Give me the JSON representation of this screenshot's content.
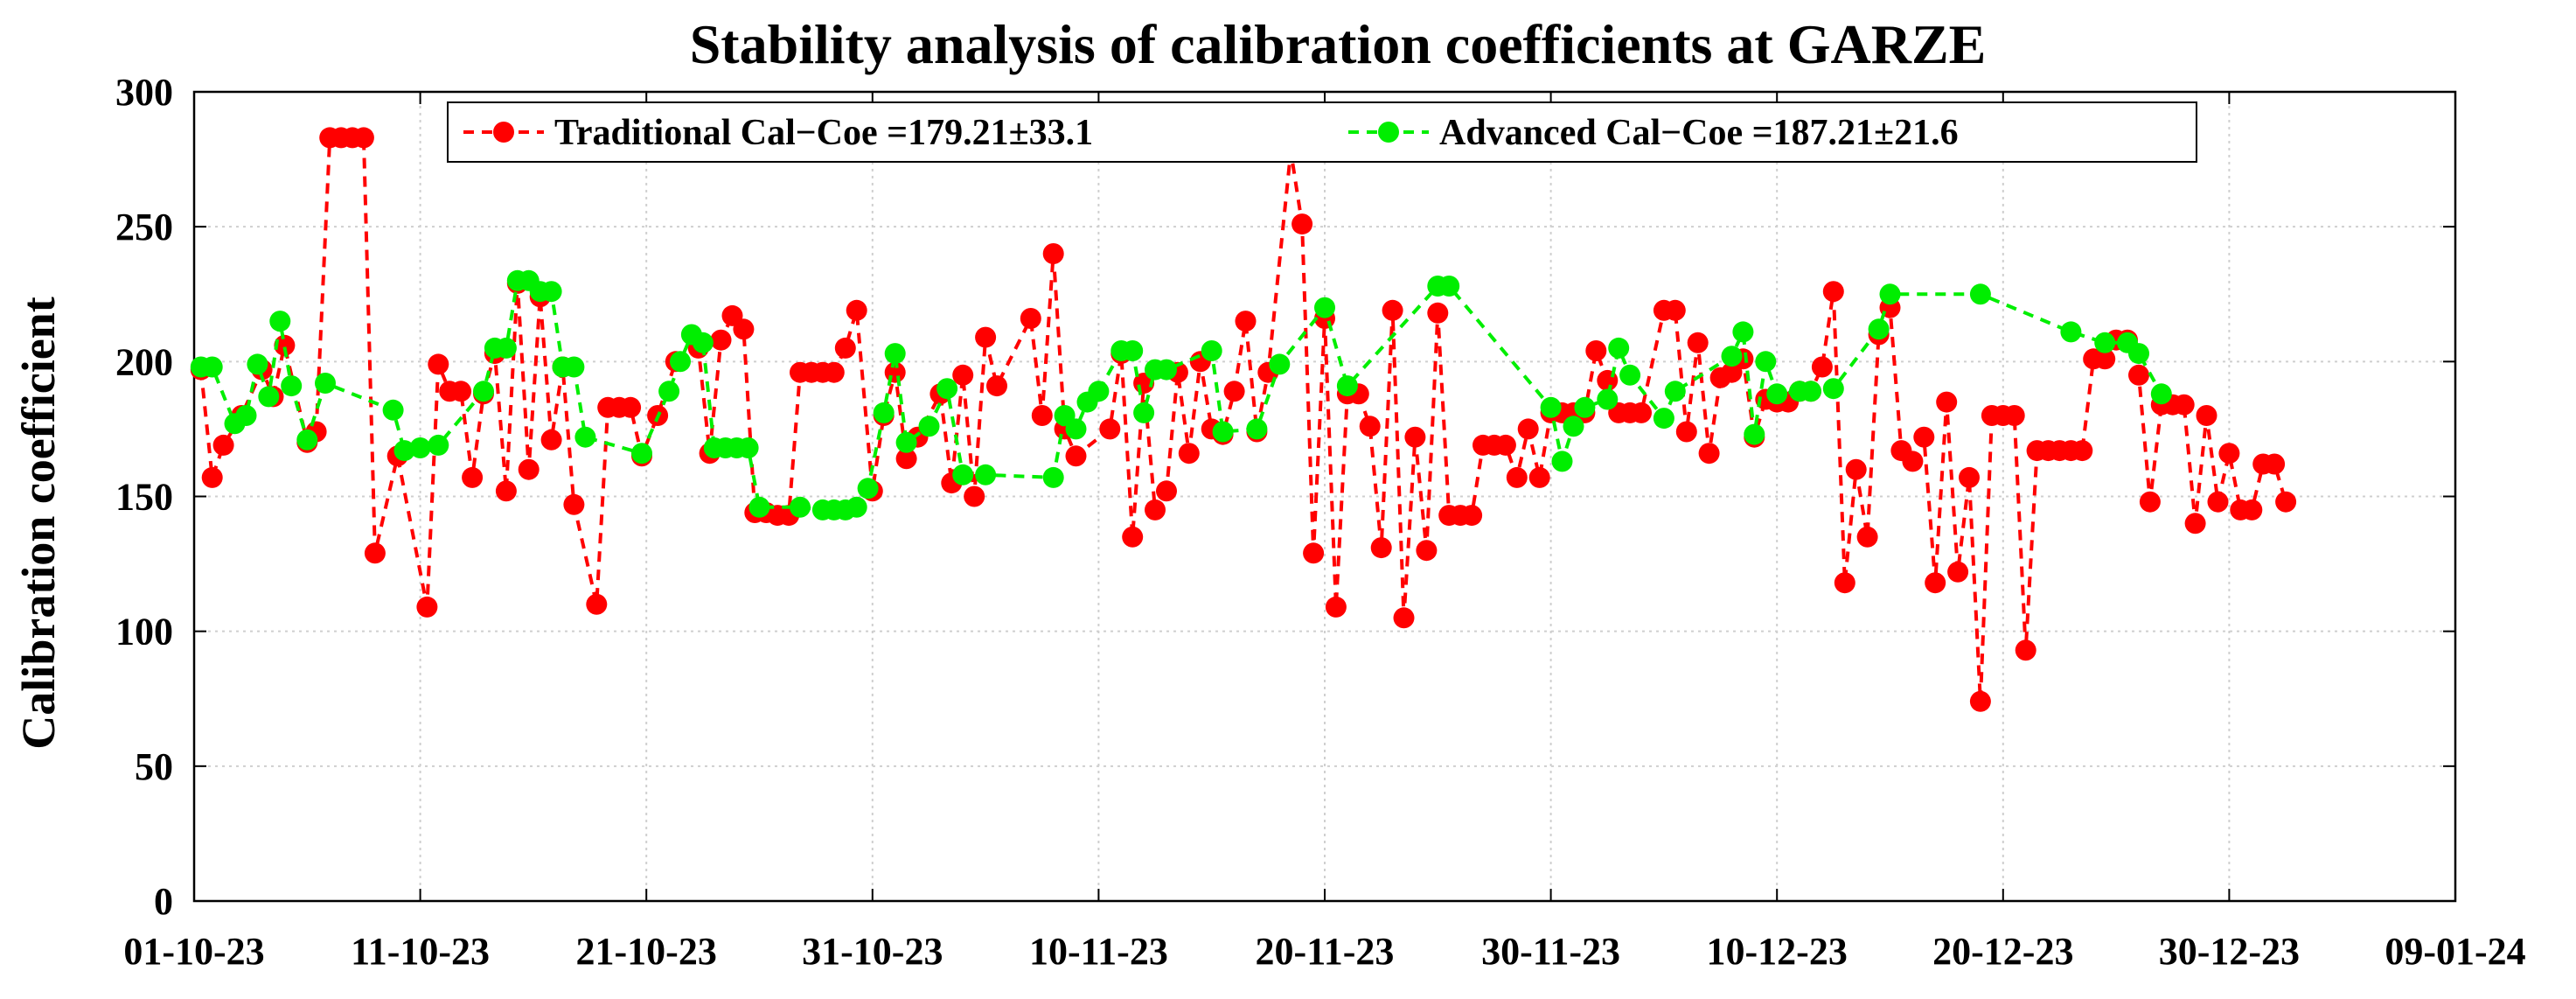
{
  "chart_data": {
    "type": "line",
    "title": "Stability analysis of calibration coefficients at GARZE",
    "xlabel": "",
    "ylabel": "Calibration coefficient",
    "x_tick_labels": [
      "01-10-23",
      "11-10-23",
      "21-10-23",
      "31-10-23",
      "10-11-23",
      "20-11-23",
      "30-11-23",
      "10-12-23",
      "20-12-23",
      "30-12-23",
      "09-01-24"
    ],
    "xlim_days": [
      0,
      100
    ],
    "ylim": [
      0,
      300
    ],
    "y_ticks": [
      0,
      50,
      100,
      150,
      200,
      250,
      300
    ],
    "grid": true,
    "legend_location": "top",
    "series": [
      {
        "name": "Traditional Cal-Coe",
        "label": "Traditional Cal−Coe =179.21±33.1",
        "color": "#ff0000",
        "style": "dashed-with-circles",
        "points": [
          [
            0.3,
            197
          ],
          [
            0.8,
            157
          ],
          [
            1.3,
            169
          ],
          [
            2.1,
            180
          ],
          [
            3.0,
            197
          ],
          [
            3.5,
            187
          ],
          [
            4.0,
            206
          ],
          [
            5.0,
            170
          ],
          [
            5.4,
            174
          ],
          [
            6.0,
            283
          ],
          [
            6.5,
            283
          ],
          [
            7.0,
            283
          ],
          [
            7.5,
            283
          ],
          [
            8.0,
            129
          ],
          [
            9.0,
            165
          ],
          [
            10.3,
            109
          ],
          [
            10.8,
            199
          ],
          [
            11.3,
            189
          ],
          [
            11.8,
            189
          ],
          [
            12.3,
            157
          ],
          [
            12.8,
            188
          ],
          [
            13.3,
            203
          ],
          [
            13.8,
            152
          ],
          [
            14.3,
            229
          ],
          [
            14.8,
            160
          ],
          [
            15.3,
            224
          ],
          [
            15.8,
            171
          ],
          [
            16.3,
            198
          ],
          [
            16.8,
            147
          ],
          [
            17.8,
            110
          ],
          [
            18.3,
            183
          ],
          [
            18.8,
            183
          ],
          [
            19.3,
            183
          ],
          [
            19.8,
            165
          ],
          [
            20.5,
            180
          ],
          [
            21.3,
            200
          ],
          [
            22.3,
            205
          ],
          [
            22.8,
            166
          ],
          [
            23.3,
            208
          ],
          [
            23.8,
            217
          ],
          [
            24.3,
            212
          ],
          [
            24.8,
            144
          ],
          [
            25.3,
            144
          ],
          [
            25.8,
            143
          ],
          [
            26.3,
            143
          ],
          [
            26.8,
            196
          ],
          [
            27.3,
            196
          ],
          [
            27.8,
            196
          ],
          [
            28.3,
            196
          ],
          [
            28.8,
            205
          ],
          [
            29.3,
            219
          ],
          [
            30.0,
            152
          ],
          [
            30.5,
            180
          ],
          [
            31.0,
            196
          ],
          [
            31.5,
            164
          ],
          [
            32.0,
            172
          ],
          [
            33.0,
            188
          ],
          [
            33.5,
            155
          ],
          [
            34.0,
            195
          ],
          [
            34.5,
            150
          ],
          [
            35.0,
            209
          ],
          [
            35.5,
            191
          ],
          [
            37.0,
            216
          ],
          [
            37.5,
            180
          ],
          [
            38.0,
            240
          ],
          [
            38.5,
            175
          ],
          [
            39.0,
            165
          ],
          [
            40.5,
            175
          ],
          [
            41.0,
            203
          ],
          [
            41.5,
            135
          ],
          [
            42.0,
            192
          ],
          [
            42.5,
            145
          ],
          [
            43.0,
            152
          ],
          [
            43.5,
            196
          ],
          [
            44.0,
            166
          ],
          [
            44.5,
            200
          ],
          [
            45.0,
            175
          ],
          [
            45.5,
            173
          ],
          [
            46.0,
            189
          ],
          [
            46.5,
            215
          ],
          [
            47.0,
            174
          ],
          [
            47.5,
            196
          ],
          [
            48.5,
            278
          ],
          [
            49.0,
            251
          ],
          [
            49.5,
            129
          ],
          [
            50.0,
            216
          ],
          [
            50.5,
            109
          ],
          [
            51.0,
            188
          ],
          [
            51.5,
            188
          ],
          [
            52.0,
            176
          ],
          [
            52.5,
            131
          ],
          [
            53.0,
            219
          ],
          [
            53.5,
            105
          ],
          [
            54.0,
            172
          ],
          [
            54.5,
            130
          ],
          [
            55.0,
            218
          ],
          [
            55.5,
            143
          ],
          [
            56.0,
            143
          ],
          [
            56.5,
            143
          ],
          [
            57.0,
            169
          ],
          [
            57.5,
            169
          ],
          [
            58.0,
            169
          ],
          [
            58.5,
            157
          ],
          [
            59.0,
            175
          ],
          [
            59.5,
            157
          ],
          [
            60.0,
            181
          ],
          [
            60.5,
            181
          ],
          [
            61.0,
            181
          ],
          [
            61.5,
            181
          ],
          [
            62.0,
            204
          ],
          [
            62.5,
            193
          ],
          [
            63.0,
            181
          ],
          [
            63.5,
            181
          ],
          [
            64.0,
            181
          ],
          [
            65.0,
            219
          ],
          [
            65.5,
            219
          ],
          [
            66.0,
            174
          ],
          [
            66.5,
            207
          ],
          [
            67.0,
            166
          ],
          [
            67.5,
            194
          ],
          [
            68.0,
            196
          ],
          [
            68.5,
            201
          ],
          [
            69.0,
            172
          ],
          [
            69.5,
            186
          ],
          [
            70.0,
            185
          ],
          [
            70.5,
            185
          ],
          [
            71.0,
            189
          ],
          [
            71.5,
            189
          ],
          [
            72.0,
            198
          ],
          [
            72.5,
            226
          ],
          [
            73.0,
            118
          ],
          [
            73.5,
            160
          ],
          [
            74.0,
            135
          ],
          [
            74.5,
            210
          ],
          [
            75.0,
            220
          ],
          [
            75.5,
            167
          ],
          [
            76.0,
            163
          ],
          [
            76.5,
            172
          ],
          [
            77.0,
            118
          ],
          [
            77.5,
            185
          ],
          [
            78.0,
            122
          ],
          [
            78.5,
            157
          ],
          [
            79.0,
            74
          ],
          [
            79.5,
            180
          ],
          [
            80.0,
            180
          ],
          [
            80.5,
            180
          ],
          [
            81.0,
            93
          ],
          [
            81.5,
            167
          ],
          [
            82.0,
            167
          ],
          [
            82.5,
            167
          ],
          [
            83.0,
            167
          ],
          [
            83.5,
            167
          ],
          [
            84.0,
            201
          ],
          [
            84.5,
            201
          ],
          [
            85.0,
            208
          ],
          [
            85.5,
            208
          ],
          [
            86.0,
            195
          ],
          [
            86.5,
            148
          ],
          [
            87.0,
            184
          ],
          [
            87.5,
            184
          ],
          [
            88.0,
            184
          ],
          [
            88.5,
            140
          ],
          [
            89.0,
            180
          ],
          [
            89.5,
            148
          ],
          [
            90.0,
            166
          ],
          [
            90.5,
            145
          ],
          [
            91.0,
            145
          ],
          [
            91.5,
            162
          ],
          [
            92.0,
            162
          ],
          [
            92.5,
            148
          ]
        ]
      },
      {
        "name": "Advanced Cal-Coe",
        "label": "Advanced Cal−Coe =187.21±21.6",
        "color": "#00ee00",
        "style": "dashed-with-circles",
        "points": [
          [
            0.3,
            198
          ],
          [
            0.8,
            198
          ],
          [
            1.8,
            177
          ],
          [
            2.3,
            180
          ],
          [
            2.8,
            199
          ],
          [
            3.3,
            187
          ],
          [
            3.8,
            215
          ],
          [
            4.3,
            191
          ],
          [
            5.0,
            171
          ],
          [
            5.8,
            192
          ],
          [
            8.8,
            182
          ],
          [
            9.3,
            167
          ],
          [
            10.0,
            168
          ],
          [
            10.8,
            169
          ],
          [
            12.8,
            189
          ],
          [
            13.3,
            205
          ],
          [
            13.8,
            205
          ],
          [
            14.3,
            230
          ],
          [
            14.8,
            230
          ],
          [
            15.3,
            226
          ],
          [
            15.8,
            226
          ],
          [
            16.3,
            198
          ],
          [
            16.8,
            198
          ],
          [
            17.3,
            172
          ],
          [
            19.8,
            166
          ],
          [
            21.0,
            189
          ],
          [
            21.5,
            200
          ],
          [
            22.0,
            210
          ],
          [
            22.5,
            207
          ],
          [
            23.0,
            168
          ],
          [
            23.5,
            168
          ],
          [
            24.0,
            168
          ],
          [
            24.5,
            168
          ],
          [
            25.0,
            146
          ],
          [
            26.8,
            146
          ],
          [
            27.8,
            145
          ],
          [
            28.3,
            145
          ],
          [
            28.8,
            145
          ],
          [
            29.3,
            146
          ],
          [
            29.8,
            153
          ],
          [
            30.5,
            181
          ],
          [
            31.0,
            203
          ],
          [
            31.5,
            170
          ],
          [
            32.5,
            176
          ],
          [
            33.3,
            190
          ],
          [
            34.0,
            158
          ],
          [
            35.0,
            158
          ],
          [
            38.0,
            157
          ],
          [
            38.5,
            180
          ],
          [
            39.0,
            175
          ],
          [
            39.5,
            185
          ],
          [
            40.0,
            189
          ],
          [
            41.0,
            204
          ],
          [
            41.5,
            204
          ],
          [
            42.0,
            181
          ],
          [
            42.5,
            197
          ],
          [
            43.0,
            197
          ],
          [
            45.0,
            204
          ],
          [
            45.5,
            174
          ],
          [
            47.0,
            175
          ],
          [
            48.0,
            199
          ],
          [
            50.0,
            220
          ],
          [
            51.0,
            191
          ],
          [
            55.0,
            228
          ],
          [
            55.5,
            228
          ],
          [
            60.0,
            183
          ],
          [
            60.5,
            163
          ],
          [
            61.0,
            176
          ],
          [
            61.5,
            183
          ],
          [
            62.5,
            186
          ],
          [
            63.0,
            205
          ],
          [
            63.5,
            195
          ],
          [
            65.0,
            179
          ],
          [
            65.5,
            189
          ],
          [
            68.0,
            202
          ],
          [
            68.5,
            211
          ],
          [
            69.0,
            173
          ],
          [
            69.5,
            200
          ],
          [
            70.0,
            188
          ],
          [
            71.0,
            189
          ],
          [
            71.5,
            189
          ],
          [
            72.5,
            190
          ],
          [
            74.5,
            212
          ],
          [
            75.0,
            225
          ],
          [
            79.0,
            225
          ],
          [
            83.0,
            211
          ],
          [
            84.5,
            207
          ],
          [
            85.5,
            207
          ],
          [
            86.0,
            203
          ],
          [
            87.0,
            188
          ]
        ]
      }
    ]
  }
}
